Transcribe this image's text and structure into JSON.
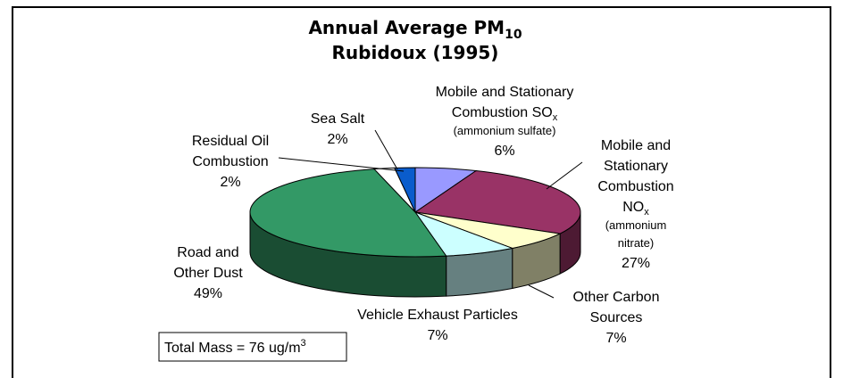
{
  "chart_data": {
    "type": "pie",
    "title": [
      "Annual Average PM",
      "Rubidoux (1995)"
    ],
    "title_subscript": "10",
    "categories": [
      [
        "Mobile and Stationary",
        "Combustion SO"
      ],
      [
        "Mobile and",
        "Stationary",
        "Combustion",
        "NO"
      ],
      [
        "Other Carbon",
        "Sources"
      ],
      [
        "Vehicle Exhaust Particles"
      ],
      [
        "Road and",
        "Other Dust"
      ],
      [
        "Residual Oil",
        "Combustion"
      ],
      [
        "Sea Salt"
      ]
    ],
    "category_subscripts": [
      [
        "x"
      ],
      [
        "x"
      ],
      null,
      null,
      null,
      null,
      null
    ],
    "category_notes": [
      [
        "(ammonium sulfate)"
      ],
      [
        "(ammonium",
        "nitrate)"
      ],
      null,
      null,
      null,
      null,
      null
    ],
    "values": [
      6,
      27,
      7,
      7,
      49,
      2,
      2
    ],
    "value_labels": [
      "6%",
      "27%",
      "7%",
      "7%",
      "49%",
      "2%",
      "2%"
    ],
    "colors": [
      "#9999ff",
      "#993366",
      "#ffffcc",
      "#ccffff",
      "#339966",
      "#ffffff",
      "#0a5ccc"
    ],
    "annotation": {
      "text": "Total Mass = 76 ug/m",
      "superscript": "3"
    }
  }
}
